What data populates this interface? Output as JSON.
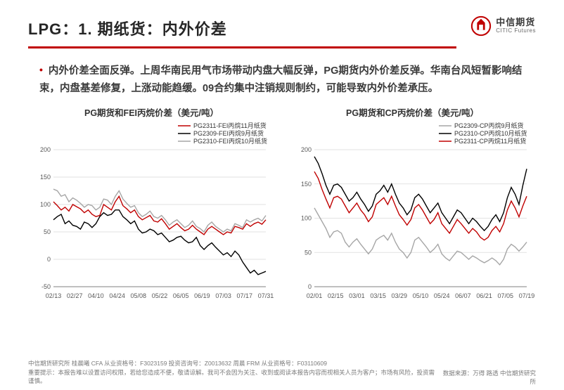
{
  "header": {
    "title_prefix": "LPG：1. 期纸货：",
    "title_highlight": "内外价差",
    "logo_cn": "中信期货",
    "logo_en": "CITIC Futures"
  },
  "body": {
    "para": "内外价差全面反弹。上周华南民用气市场带动内盘大幅反弹，PG期货内外价差反弹。华南台风短暂影响结束，内盘基差修复，上涨动能趋缓。09合约集中注销规则制约，可能导致内外价差承压。"
  },
  "chart_left": {
    "title": "PG期货和FEI丙烷价差（美元/吨）",
    "ylim": [
      -50,
      200
    ],
    "ytick_step": 50,
    "yticks": [
      -50,
      0,
      50,
      100,
      150,
      200
    ],
    "xticks": [
      "02/13",
      "02/27",
      "04/10",
      "04/24",
      "05/08",
      "05/22",
      "06/05",
      "06/19",
      "07/03",
      "07/17",
      "07/31"
    ],
    "background_color": "#ffffff",
    "grid_color": "#d9d9d9",
    "axis_fontsize": 9,
    "title_fontsize": 12.5,
    "line_width": 1.4,
    "legend_pos": "top-right",
    "series": [
      {
        "name": "PG2311-FEI丙烷11月纸货",
        "color": "#c00000",
        "data": [
          105,
          98,
          90,
          95,
          88,
          100,
          96,
          92,
          85,
          90,
          82,
          78,
          80,
          100,
          95,
          90,
          105,
          115,
          98,
          92,
          85,
          90,
          78,
          72,
          76,
          80,
          70,
          68,
          74,
          65,
          55,
          60,
          65,
          58,
          52,
          55,
          62,
          55,
          50,
          45,
          55,
          60,
          55,
          50,
          45,
          50,
          48,
          60,
          58,
          55,
          65,
          60,
          65,
          68,
          64,
          72
        ]
      },
      {
        "name": "PG2309-FEI丙烷9月纸货",
        "color": "#000000",
        "data": [
          72,
          78,
          82,
          65,
          70,
          62,
          60,
          55,
          68,
          65,
          58,
          65,
          78,
          85,
          80,
          82,
          90,
          90,
          78,
          72,
          65,
          70,
          55,
          48,
          50,
          55,
          52,
          45,
          48,
          40,
          32,
          35,
          40,
          42,
          35,
          30,
          32,
          40,
          25,
          18,
          25,
          30,
          22,
          15,
          8,
          12,
          5,
          15,
          8,
          -5,
          -15,
          -25,
          -20,
          -28,
          -25,
          -22
        ]
      },
      {
        "name": "PG2310-FEI丙烷10月纸货",
        "color": "#a6a6a6",
        "data": [
          128,
          125,
          115,
          118,
          105,
          112,
          108,
          102,
          95,
          100,
          98,
          90,
          95,
          110,
          108,
          100,
          115,
          125,
          110,
          102,
          95,
          98,
          85,
          78,
          82,
          88,
          78,
          75,
          80,
          72,
          62,
          68,
          72,
          65,
          58,
          62,
          70,
          60,
          56,
          50,
          62,
          68,
          60,
          55,
          50,
          55,
          52,
          65,
          62,
          58,
          72,
          68,
          72,
          75,
          70,
          80
        ]
      }
    ]
  },
  "chart_right": {
    "title": "PG期货和CP丙烷价差（美元/吨）",
    "ylim": [
      0,
      200
    ],
    "ytick_step": 50,
    "yticks": [
      0,
      50,
      100,
      150,
      200
    ],
    "xticks": [
      "02/01",
      "02/15",
      "03/01",
      "03/15",
      "03/29",
      "05/10",
      "05/24",
      "06/07",
      "06/21",
      "07/05",
      "07/19"
    ],
    "background_color": "#ffffff",
    "grid_color": "#d9d9d9",
    "axis_fontsize": 9,
    "title_fontsize": 12.5,
    "line_width": 1.4,
    "legend_pos": "top-right",
    "series": [
      {
        "name": "PG2309-CP丙烷9月纸货",
        "color": "#a6a6a6",
        "data": [
          115,
          105,
          95,
          85,
          72,
          80,
          82,
          78,
          65,
          58,
          65,
          70,
          62,
          55,
          48,
          55,
          68,
          72,
          75,
          68,
          78,
          65,
          55,
          50,
          42,
          50,
          68,
          72,
          65,
          58,
          50,
          55,
          62,
          48,
          42,
          38,
          45,
          52,
          50,
          45,
          40,
          45,
          42,
          38,
          35,
          38,
          42,
          38,
          32,
          40,
          55,
          62,
          58,
          52,
          58,
          65
        ]
      },
      {
        "name": "PG2310-CP丙烷10月纸货",
        "color": "#000000",
        "data": [
          190,
          180,
          165,
          148,
          135,
          148,
          150,
          145,
          135,
          125,
          130,
          138,
          128,
          120,
          110,
          118,
          135,
          140,
          148,
          138,
          150,
          135,
          122,
          115,
          105,
          112,
          130,
          135,
          128,
          118,
          108,
          115,
          122,
          108,
          100,
          92,
          102,
          112,
          108,
          100,
          92,
          100,
          95,
          88,
          82,
          88,
          98,
          105,
          95,
          108,
          130,
          145,
          135,
          120,
          148,
          172
        ]
      },
      {
        "name": "PG2311-CP丙烷11月纸货",
        "color": "#c00000",
        "data": [
          168,
          158,
          142,
          128,
          115,
          130,
          132,
          128,
          118,
          108,
          115,
          122,
          112,
          105,
          95,
          102,
          120,
          125,
          130,
          120,
          132,
          118,
          105,
          98,
          90,
          98,
          115,
          120,
          112,
          102,
          92,
          98,
          108,
          92,
          85,
          78,
          88,
          98,
          92,
          85,
          78,
          85,
          80,
          72,
          68,
          72,
          82,
          88,
          80,
          92,
          112,
          125,
          115,
          102,
          118,
          132
        ]
      }
    ]
  },
  "footer": {
    "left_line1": "中信期货研究所   桂晨曦 CFA   从业资格号：F3023159   投资咨询号：Z0013632       周晨   FRM   从业资格号：F03110609",
    "left_line2": "重要提示：本报告难以设置访问权限，若给您造成不便，敬请谅解。我司不会因为关注、收到或阅读本报告内容而视相关人员为客户；市场有风险，投资需谨慎。",
    "right": "数据来源：万得 路透 中信期货研究所"
  },
  "colors": {
    "accent": "#c00000",
    "text": "#3a3a3a",
    "grid": "#d9d9d9",
    "axis": "#808080",
    "series_gray": "#a6a6a6"
  }
}
